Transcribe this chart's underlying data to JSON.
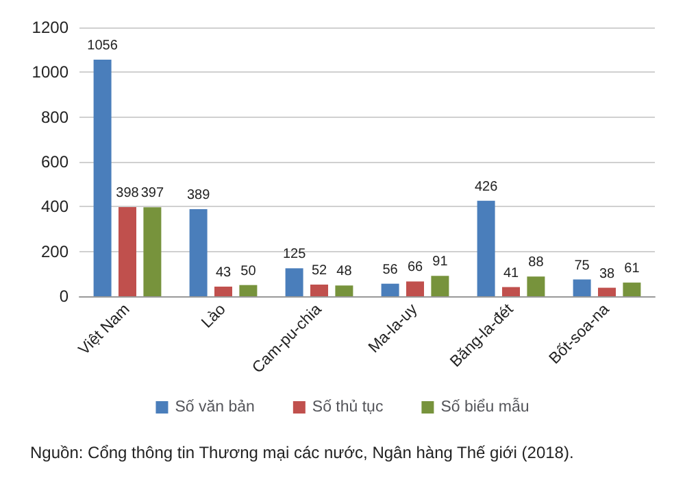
{
  "chart_data": {
    "type": "bar",
    "categories": [
      "Việt Nam",
      "Lào",
      "Cam-pu-chia",
      "Ma-la-uy",
      "Băng-la-đét",
      "Bốt-soa-na"
    ],
    "series": [
      {
        "name": "Số văn bản",
        "color": "#4a7ebb",
        "values": [
          1056,
          389,
          125,
          56,
          426,
          75
        ]
      },
      {
        "name": "Số thủ tục",
        "color": "#c0504d",
        "values": [
          398,
          43,
          52,
          66,
          41,
          38
        ]
      },
      {
        "name": "Số biểu mẫu",
        "color": "#77933c",
        "values": [
          397,
          50,
          48,
          91,
          88,
          61
        ]
      }
    ],
    "ylim": [
      0,
      1200
    ],
    "yticks": [
      0,
      200,
      400,
      600,
      800,
      1000,
      1200
    ],
    "grid": "y",
    "legend": "bottom",
    "data_labels": true,
    "annotations": [
      "Nguồn: Cổng thông tin Thương mại các nước, Ngân hàng Thế giới (2018)."
    ]
  }
}
